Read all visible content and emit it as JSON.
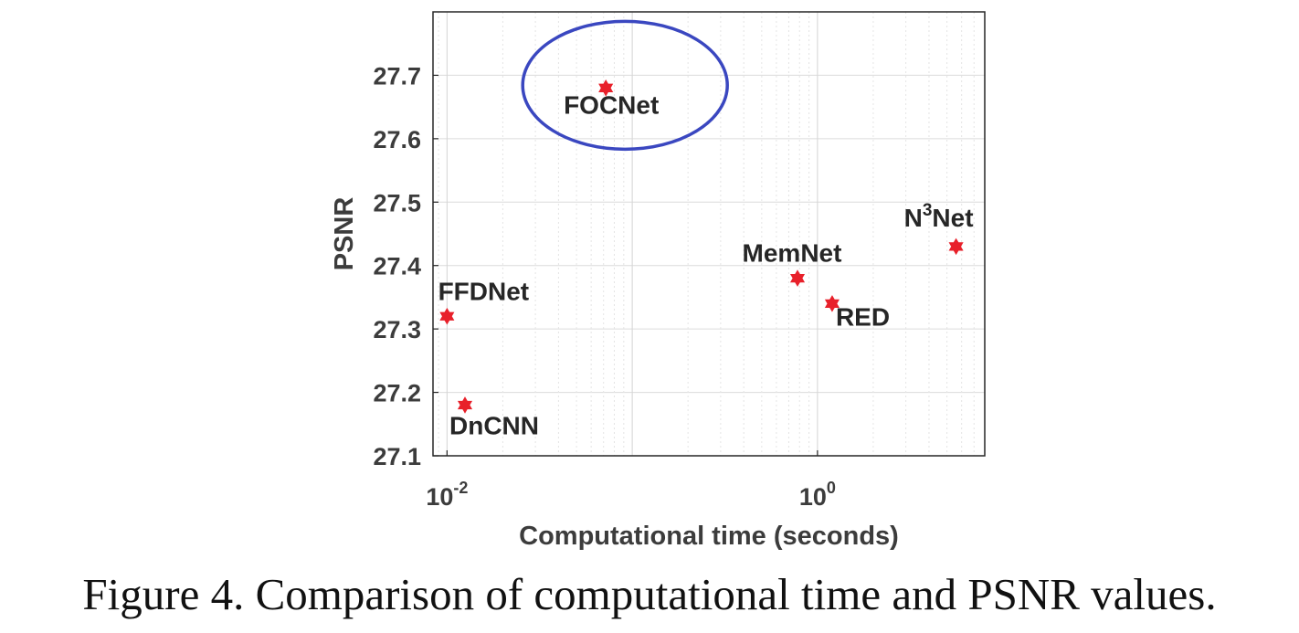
{
  "chart_data": {
    "type": "scatter",
    "xscale": "log",
    "xlim": [
      0.0084,
      8.0
    ],
    "ylim": [
      27.1,
      27.8
    ],
    "xlabel": "Computational time (seconds)",
    "ylabel": "PSNR",
    "y_ticks": [
      "27.1",
      "27.2",
      "27.3",
      "27.4",
      "27.5",
      "27.6",
      "27.7"
    ],
    "x_ticks": [
      {
        "base": "10",
        "exp": "-2",
        "value": 0.01
      },
      {
        "base": "10",
        "exp": "0",
        "value": 1
      }
    ],
    "grid": true,
    "marker": "hexagram",
    "marker_color": "#e8202a",
    "highlight_color": "#3a47c0",
    "highlight": "FOCNet",
    "points": [
      {
        "name": "FOCNet",
        "label": "FOCNet",
        "x": 0.072,
        "y": 27.68
      },
      {
        "name": "FFDNet",
        "label": "FFDNet",
        "x": 0.01,
        "y": 27.32
      },
      {
        "name": "DnCNN",
        "label": "DnCNN",
        "x": 0.0125,
        "y": 27.18
      },
      {
        "name": "MemNet",
        "label": "MemNet",
        "x": 0.78,
        "y": 27.38
      },
      {
        "name": "RED",
        "label": "RED",
        "x": 1.2,
        "y": 27.34
      },
      {
        "name": "N3Net",
        "label": "N",
        "label_sup": "3",
        "label_suffix": "Net",
        "x": 5.6,
        "y": 27.43
      }
    ]
  },
  "caption": "Figure 4. Comparison of computational time and PSNR values."
}
